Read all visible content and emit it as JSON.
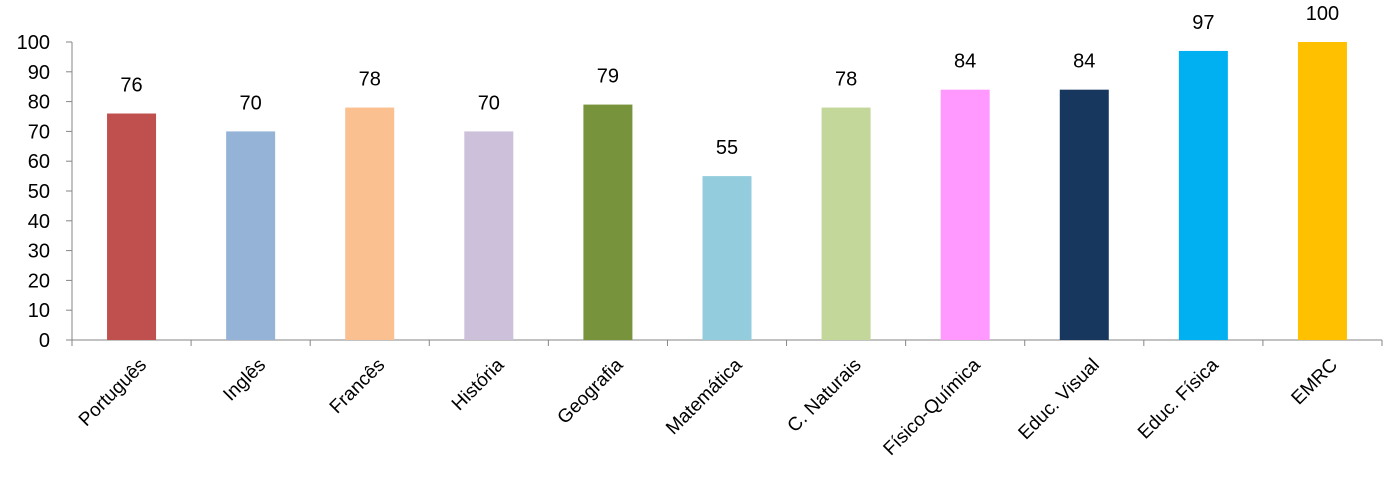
{
  "chart_data": {
    "type": "bar",
    "title": "",
    "xlabel": "",
    "ylabel": "",
    "categories": [
      "Português",
      "Inglês",
      "Francês",
      "História",
      "Geografia",
      "Matemática",
      "C. Naturais",
      "Físico-Química",
      "Educ. Visual",
      "Educ. Física",
      "EMRC"
    ],
    "values": [
      76,
      70,
      78,
      70,
      79,
      55,
      78,
      84,
      84,
      97,
      100
    ],
    "data_labels": [
      "76",
      "70",
      "78",
      "70",
      "79",
      "55",
      "78",
      "84",
      "84",
      "97",
      "100"
    ],
    "colors": [
      "#C0504D",
      "#95B3D7",
      "#FAC090",
      "#CCC0DA",
      "#77933C",
      "#93CDDD",
      "#C4D79B",
      "#FF99FF",
      "#17375E",
      "#00B0F0",
      "#FFC000"
    ],
    "ylim": [
      0,
      100
    ],
    "yticks": [
      "0",
      "10",
      "20",
      "30",
      "40",
      "50",
      "60",
      "70",
      "80",
      "90",
      "100"
    ],
    "grid": false,
    "legend": "none"
  }
}
